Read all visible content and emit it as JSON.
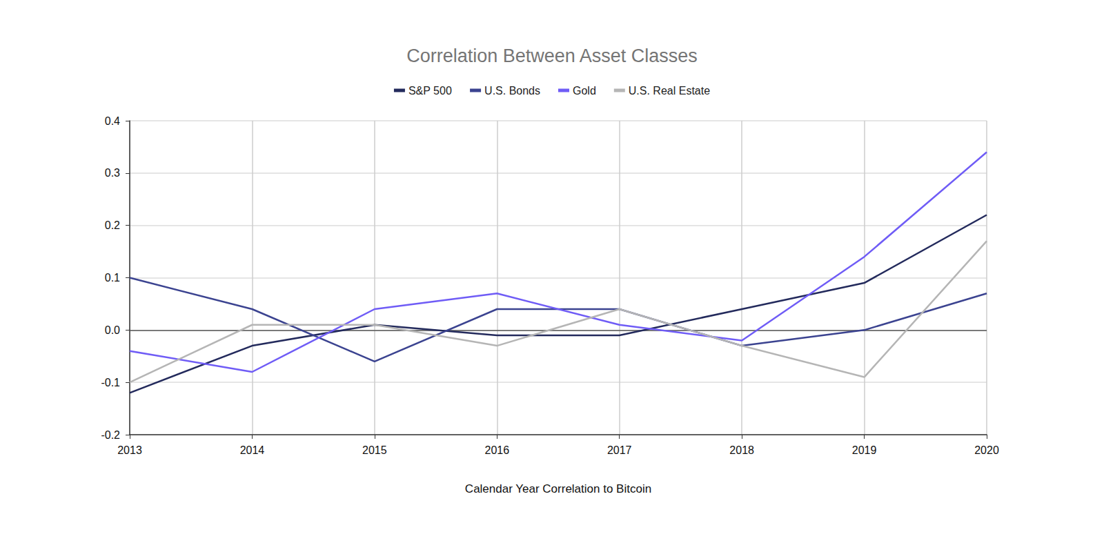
{
  "chart_data": {
    "type": "line",
    "title": "Correlation Between Asset Classes",
    "x_label": "Calendar Year Correlation to Bitcoin",
    "categories": [
      "2013",
      "2014",
      "2015",
      "2016",
      "2017",
      "2018",
      "2019",
      "2020"
    ],
    "series": [
      {
        "name": "S&P 500",
        "color": "#232a5c",
        "values": [
          -0.12,
          -0.03,
          0.01,
          -0.01,
          -0.01,
          0.04,
          0.09,
          0.22
        ]
      },
      {
        "name": "U.S. Bonds",
        "color": "#3b4390",
        "values": [
          0.1,
          0.04,
          -0.06,
          0.04,
          0.04,
          -0.03,
          0.0,
          0.07
        ]
      },
      {
        "name": "Gold",
        "color": "#6f5cf6",
        "values": [
          -0.04,
          -0.08,
          0.04,
          0.07,
          0.01,
          -0.02,
          0.14,
          0.34
        ]
      },
      {
        "name": "U.S. Real Estate",
        "color": "#b5b5b5",
        "values": [
          -0.1,
          0.01,
          0.01,
          -0.03,
          0.04,
          -0.03,
          -0.09,
          0.17
        ]
      }
    ],
    "ylim": [
      -0.2,
      0.4
    ],
    "yticks": [
      -0.2,
      -0.1,
      {
        "value": 0,
        "label": "0.0"
      },
      0.1,
      0.2,
      0.3,
      0.4
    ],
    "grid": true,
    "legend": "top"
  }
}
